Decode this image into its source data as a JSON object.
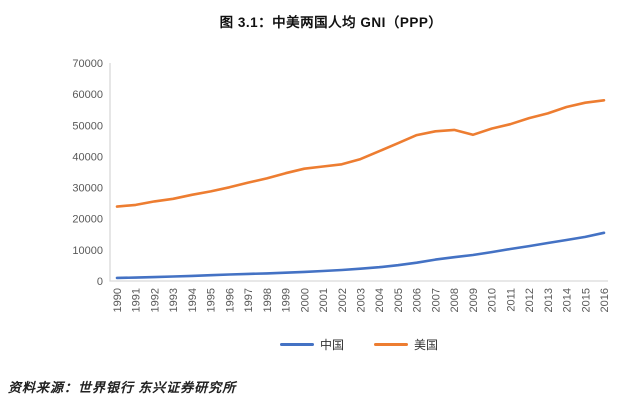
{
  "title": "图 3.1：中美两国人均 GNI（PPP）",
  "source_note": "资料来源：世界银行 东兴证券研究所",
  "colors": {
    "china_line": "#4472C4",
    "us_line": "#ED7D31",
    "axis_line": "#D9D9D9",
    "tick_text": "#595959",
    "background": "#FFFFFF"
  },
  "legend": {
    "items": [
      {
        "label": "中国",
        "color": "#4472C4"
      },
      {
        "label": "美国",
        "color": "#ED7D31"
      }
    ]
  },
  "chart_data": {
    "type": "line",
    "title": "图 3.1：中美两国人均 GNI（PPP）",
    "xlabel": "",
    "ylabel": "",
    "x": [
      1990,
      1991,
      1992,
      1993,
      1994,
      1995,
      1996,
      1997,
      1998,
      1999,
      2000,
      2001,
      2002,
      2003,
      2004,
      2005,
      2006,
      2007,
      2008,
      2009,
      2010,
      2011,
      2012,
      2013,
      2014,
      2015,
      2016
    ],
    "series": [
      {
        "name": "中国",
        "color": "#4472C4",
        "values": [
          990,
          1100,
          1260,
          1440,
          1630,
          1860,
          2080,
          2280,
          2450,
          2650,
          2930,
          3210,
          3540,
          3950,
          4440,
          5070,
          5880,
          6860,
          7630,
          8360,
          9270,
          10290,
          11220,
          12200,
          13170,
          14160,
          15470
        ]
      },
      {
        "name": "美国",
        "color": "#ED7D31",
        "values": [
          23900,
          24450,
          25550,
          26390,
          27690,
          28780,
          30080,
          31610,
          32930,
          34600,
          36070,
          36760,
          37480,
          39140,
          41680,
          44240,
          46840,
          48060,
          48510,
          46930,
          48950,
          50340,
          52310,
          53820,
          55860,
          57250,
          58030
        ]
      }
    ],
    "ylim": [
      0,
      70000
    ],
    "yticks": [
      0,
      10000,
      20000,
      30000,
      40000,
      50000,
      60000,
      70000
    ],
    "grid": false,
    "legend_position": "bottom"
  }
}
